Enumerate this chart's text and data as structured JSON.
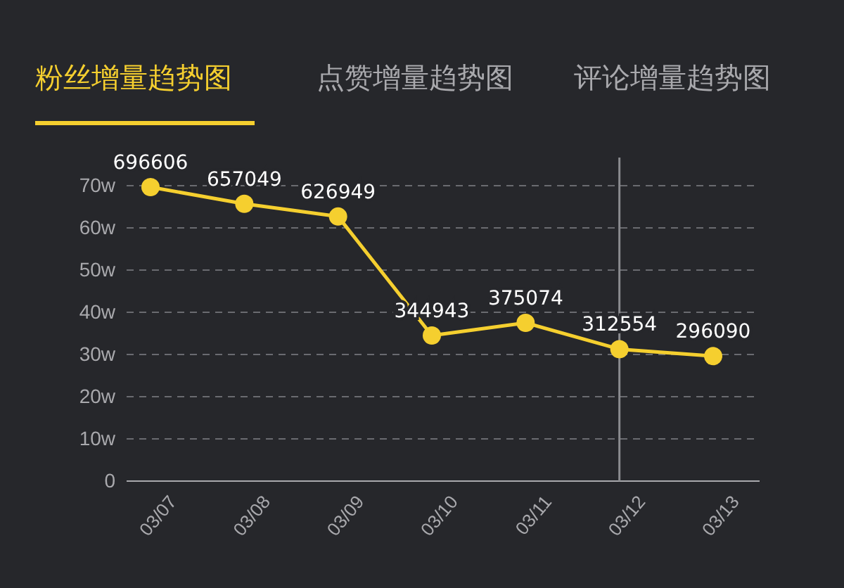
{
  "chart_data": {
    "type": "line",
    "title": "粉丝增量趋势图",
    "annotations": [
      "点赞增量趋势图",
      "评论增量趋势图"
    ],
    "categories": [
      "03/07",
      "03/08",
      "03/09",
      "03/10",
      "03/11",
      "03/12",
      "03/13"
    ],
    "series": [
      {
        "color": "#f5cf2f",
        "values": [
          69.6606,
          65.7049,
          62.6949,
          34.4943,
          37.5074,
          31.2554,
          29.609
        ]
      }
    ],
    "value_labels": [
      "696606",
      "657049",
      "626949",
      "344943",
      "375074",
      "312554",
      "296090"
    ],
    "ylim": [
      0,
      70
    ],
    "yticks": [
      0,
      {
        "value": 10,
        "label": "10w"
      },
      {
        "value": 20,
        "label": "20w"
      },
      {
        "value": 30,
        "label": "30w"
      },
      {
        "value": 40,
        "label": "40w"
      },
      {
        "value": 50,
        "label": "50w"
      },
      {
        "value": 60,
        "label": "60w"
      },
      {
        "value": 70,
        "label": "70w"
      }
    ],
    "grid": "y",
    "marker": "circle",
    "ref_lines": [
      {
        "axis": "x",
        "value": "03/12",
        "color": "#8a8b8f"
      }
    ]
  }
}
